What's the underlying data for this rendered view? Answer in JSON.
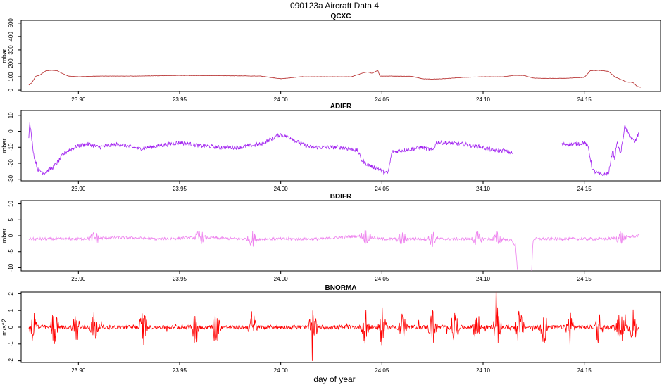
{
  "figure": {
    "title": "090123a   Aircraft Data 4",
    "xlabel": "day of year"
  },
  "chart_data": [
    {
      "type": "line",
      "title": "QCXC",
      "ylabel": "mbar",
      "color": "#b22222",
      "xlim": [
        23.8717,
        24.1877
      ],
      "ylim": [
        -10,
        520
      ],
      "x_ticks": [
        23.9,
        23.95,
        24.0,
        24.05,
        24.1,
        24.15
      ],
      "x_tick_labels": [
        "23.90",
        "23.95",
        "24.00",
        "24.05",
        "24.10",
        "24.15"
      ],
      "y_ticks": [
        0,
        100,
        200,
        300,
        400,
        500
      ],
      "y_tick_labels": [
        "0",
        "100",
        "200",
        "300",
        "400",
        "500"
      ],
      "noise": 1,
      "series": [
        {
          "x": [
            23.8755,
            23.877,
            23.879,
            23.8805,
            23.884,
            23.887,
            23.8895,
            23.892,
            23.895,
            23.9,
            23.91,
            23.93,
            23.95,
            23.97,
            23.99,
            23.995,
            24.0,
            24.01,
            24.02,
            24.035,
            24.041,
            24.043,
            24.045,
            24.048,
            24.049,
            24.055,
            24.065,
            24.07,
            24.075,
            24.08,
            24.09,
            24.1,
            24.11,
            24.115,
            24.12,
            24.125,
            24.13,
            24.14,
            24.15,
            24.153,
            24.157,
            24.162,
            24.165,
            24.168,
            24.171,
            24.174,
            24.176,
            24.178
          ],
          "y": [
            38,
            55,
            105,
            108,
            145,
            148,
            145,
            125,
            105,
            100,
            105,
            105,
            110,
            108,
            105,
            95,
            85,
            100,
            100,
            100,
            130,
            135,
            125,
            148,
            105,
            105,
            103,
            85,
            82,
            85,
            95,
            100,
            100,
            110,
            110,
            90,
            88,
            88,
            95,
            145,
            148,
            140,
            100,
            80,
            60,
            58,
            30,
            20
          ]
        }
      ]
    },
    {
      "type": "line",
      "title": "ADIFR",
      "ylabel": "mbar",
      "color": "#a020f0",
      "xlim": [
        23.8717,
        24.1877
      ],
      "ylim": [
        -31,
        13
      ],
      "x_ticks": [
        23.9,
        23.95,
        24.0,
        24.05,
        24.1,
        24.15
      ],
      "x_tick_labels": [
        "23.90",
        "23.95",
        "24.00",
        "24.05",
        "24.10",
        "24.15"
      ],
      "y_ticks": [
        -30,
        -20,
        -10,
        0,
        10
      ],
      "y_tick_labels": [
        "-30",
        "-20",
        "-10",
        "0",
        "10"
      ],
      "noise": 1.3,
      "series": [
        {
          "x": [
            23.8755,
            23.876,
            23.877,
            23.878,
            23.88,
            23.883,
            23.887,
            23.89,
            23.892,
            23.895,
            23.9,
            23.905,
            23.91,
            23.92,
            23.93,
            23.94,
            23.95,
            23.96,
            23.97,
            23.98,
            23.99,
            23.995,
            24.0,
            24.005,
            24.01,
            24.015,
            24.02,
            24.03,
            24.038,
            24.04,
            24.042,
            24.045,
            24.048,
            24.05,
            24.052,
            24.053,
            24.055,
            24.06,
            24.07,
            24.075,
            24.077,
            24.08,
            24.09,
            24.1,
            24.105,
            24.11,
            24.115
          ],
          "y": [
            -3,
            5,
            -5,
            -15,
            -24,
            -26,
            -23,
            -19,
            -15,
            -12,
            -9,
            -8,
            -10,
            -8,
            -11,
            -9,
            -7,
            -9,
            -10,
            -10,
            -8,
            -5,
            -2,
            -4,
            -8,
            -10,
            -10,
            -10,
            -12,
            -18,
            -20,
            -22,
            -23,
            -25,
            -26,
            -26,
            -13,
            -12,
            -10,
            -12,
            -7,
            -7,
            -8,
            -10,
            -12,
            -12,
            -14
          ]
        },
        {
          "x": [
            24.139,
            24.14,
            24.145,
            24.15,
            24.152,
            24.154,
            24.156,
            24.158,
            24.16,
            24.162,
            24.163,
            24.164,
            24.165,
            24.166,
            24.168,
            24.17,
            24.172,
            24.175,
            24.177
          ],
          "y": [
            -8,
            -8,
            -8,
            -7,
            -10,
            -24,
            -26,
            -27,
            -27,
            -26,
            -20,
            -11,
            -18,
            -7,
            -14,
            3,
            -2,
            -7,
            -1
          ]
        }
      ]
    },
    {
      "type": "line",
      "title": "BDIFR",
      "ylabel": "mbar",
      "color": "#ee82ee",
      "xlim": [
        23.8717,
        24.1877
      ],
      "ylim": [
        -11,
        11
      ],
      "x_ticks": [
        23.9,
        23.95,
        24.0,
        24.05,
        24.1,
        24.15
      ],
      "x_tick_labels": [
        "23.90",
        "23.95",
        "24.00",
        "24.05",
        "24.10",
        "24.15"
      ],
      "y_ticks": [
        -10,
        -5,
        0,
        5,
        10
      ],
      "y_tick_labels": [
        "-10",
        "-5",
        "0",
        "5",
        "10"
      ],
      "noise": 0.9,
      "series": [
        {
          "x": [
            23.8755,
            23.88,
            23.9,
            23.92,
            23.94,
            23.96,
            23.98,
            24.0,
            24.02,
            24.04,
            24.05,
            24.06,
            24.08,
            24.1,
            24.11,
            24.114,
            24.116,
            24.117
          ],
          "y": [
            -1,
            -1,
            -1,
            -0.5,
            -1,
            -0.5,
            -1,
            -1,
            -1,
            0,
            -1,
            -1,
            -1,
            -1,
            -1,
            -1.5,
            -3,
            -11
          ]
        },
        {
          "x": [
            24.124,
            24.1245,
            24.125,
            24.13,
            24.14,
            24.15,
            24.16,
            24.17,
            24.177
          ],
          "y": [
            -11,
            -3,
            -1,
            -1,
            -1,
            -1,
            -1,
            -0.5,
            0
          ]
        }
      ]
    },
    {
      "type": "line",
      "title": "BNORMA",
      "ylabel": "m/s^2",
      "color": "#ff0000",
      "xlim": [
        23.8717,
        24.1877
      ],
      "ylim": [
        -2.1,
        2.1
      ],
      "x_ticks": [
        23.9,
        23.95,
        24.0,
        24.05,
        24.1,
        24.15
      ],
      "x_tick_labels": [
        "23.90",
        "23.95",
        "24.00",
        "24.05",
        "24.10",
        "24.15"
      ],
      "y_ticks": [
        -2,
        -1,
        0,
        1,
        2
      ],
      "y_tick_labels": [
        "-2",
        "-1",
        "0",
        "1",
        "2"
      ],
      "noise": 0.2,
      "series": [
        {
          "x": [
            23.8755,
            23.9,
            23.95,
            24.0,
            24.05,
            24.1,
            24.15,
            24.177
          ],
          "y": [
            0,
            0,
            0,
            0,
            0,
            0,
            0,
            0
          ]
        }
      ]
    }
  ]
}
